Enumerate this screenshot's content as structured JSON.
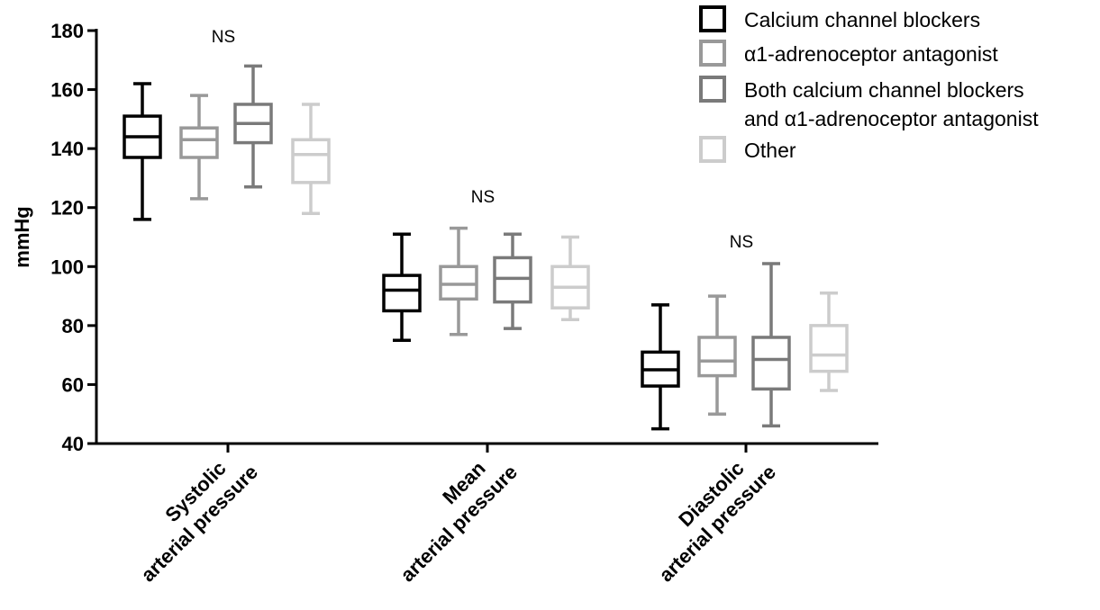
{
  "chart_data": {
    "type": "boxplot",
    "title": "",
    "xlabel": "",
    "ylabel": "mmHg",
    "ylim": [
      40,
      180
    ],
    "yticks": [
      "40",
      "60",
      "80",
      "100",
      "120",
      "140",
      "160",
      "180"
    ],
    "categories": [
      [
        "Systolic",
        "arterial pressure"
      ],
      [
        "Mean",
        "arterial pressure"
      ],
      [
        "Diastolic",
        "arterial pressure"
      ]
    ],
    "annotations": [
      "NS",
      "NS",
      "NS"
    ],
    "series": [
      {
        "name": "Calcium channel blockers",
        "color": "#000000",
        "boxes": [
          {
            "min": 116,
            "q1": 137,
            "median": 144,
            "q3": 151,
            "max": 162
          },
          {
            "min": 75,
            "q1": 85,
            "median": 92,
            "q3": 97,
            "max": 111
          },
          {
            "min": 45,
            "q1": 59.5,
            "median": 65,
            "q3": 71,
            "max": 87
          }
        ]
      },
      {
        "name": "α1-adrenoceptor antagonist",
        "color": "#999999",
        "boxes": [
          {
            "min": 123,
            "q1": 137,
            "median": 143,
            "q3": 147,
            "max": 158
          },
          {
            "min": 77,
            "q1": 89,
            "median": 94,
            "q3": 100,
            "max": 113
          },
          {
            "min": 50,
            "q1": 63,
            "median": 68,
            "q3": 76,
            "max": 90
          }
        ]
      },
      {
        "name": "Both calcium channel blockers and α1-adrenoceptor antagonist",
        "color": "#7a7a7a",
        "boxes": [
          {
            "min": 127,
            "q1": 142,
            "median": 148.5,
            "q3": 155,
            "max": 168
          },
          {
            "min": 79,
            "q1": 88,
            "median": 96,
            "q3": 103,
            "max": 111
          },
          {
            "min": 46,
            "q1": 58.5,
            "median": 68.5,
            "q3": 76,
            "max": 101
          }
        ]
      },
      {
        "name": "Other",
        "color": "#cccccc",
        "boxes": [
          {
            "min": 118,
            "q1": 128.5,
            "median": 138,
            "q3": 143,
            "max": 155
          },
          {
            "min": 82,
            "q1": 86,
            "median": 93,
            "q3": 100,
            "max": 110
          },
          {
            "min": 58,
            "q1": 64.5,
            "median": 70,
            "q3": 80,
            "max": 91
          }
        ]
      }
    ],
    "legend": {
      "position": "top-right",
      "entries": [
        {
          "lines": [
            "Calcium channel blockers"
          ],
          "color": "#000000"
        },
        {
          "lines": [
            "α1-adrenoceptor antagonist"
          ],
          "color": "#999999"
        },
        {
          "lines": [
            "Both calcium channel blockers",
            "and α1-adrenoceptor antagonist"
          ],
          "color": "#7a7a7a"
        },
        {
          "lines": [
            "Other"
          ],
          "color": "#cccccc"
        }
      ]
    }
  }
}
